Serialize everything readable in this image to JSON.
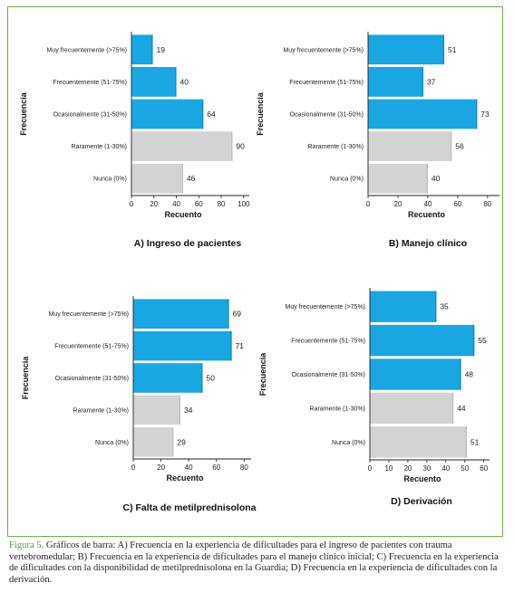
{
  "caption": {
    "label": "Figura 5.",
    "text": " Gráficos de barra: A) Frecuencia en la experiencia de dificultades para el ingreso de pacientes con trauma vertebromedular; B) Frecuencia en la experiencia de dificultades para el manejo clínico inicial; C) Frecuencia en la experiencia de dificultades con la disponibilidad de metilprednisolona en la Guardia; D) Frecuencia en la experiencia de dificultades con la derivación."
  },
  "colors": {
    "blue": "#19a6e2",
    "gray": "#d3d3d3",
    "frame": "#6cb24a"
  },
  "chart_data": [
    {
      "type": "bar",
      "orientation": "horizontal",
      "title": "A) Ingreso de pacientes",
      "xlabel": "Recuento",
      "ylabel": "Frecuencia",
      "categories": [
        "Muy frecuentemente (>75%)",
        "Frecuentemente (51-75%)",
        "Ocasionalmente (31-50%)",
        "Raramente (1-30%)",
        "Nunca (0%)"
      ],
      "values": [
        19,
        40,
        64,
        90,
        46
      ],
      "bar_colors": [
        "blue",
        "blue",
        "blue",
        "gray",
        "gray"
      ],
      "xlim": [
        0,
        105
      ],
      "xticks": [
        0,
        20,
        40,
        60,
        80,
        100
      ]
    },
    {
      "type": "bar",
      "orientation": "horizontal",
      "title": "B) Manejo clínico",
      "xlabel": "Recuento",
      "ylabel": "Frecuencia",
      "categories": [
        "Muy frecuentemente (>75%)",
        "Frecuentemente (51-75%)",
        "Ocasionalmente (31-50%)",
        "Raramente (1-30%)",
        "Nunca (0%)"
      ],
      "values": [
        51,
        37,
        73,
        56,
        40
      ],
      "bar_colors": [
        "blue",
        "blue",
        "blue",
        "gray",
        "gray"
      ],
      "xlim": [
        0,
        88
      ],
      "xticks": [
        0,
        20,
        40,
        60,
        80
      ]
    },
    {
      "type": "bar",
      "orientation": "horizontal",
      "title": "C) Falta de metilprednisolona",
      "xlabel": "Recuento",
      "ylabel": "Frecuencia",
      "categories": [
        "Muy frecuentemente (>75%)",
        "Frecuentemente (51-75%)",
        "Ocasionalmente (31-50%)",
        "Raramente (1-30%)",
        "Nunca (0%)"
      ],
      "values": [
        69,
        71,
        50,
        34,
        29
      ],
      "bar_colors": [
        "blue",
        "blue",
        "blue",
        "gray",
        "gray"
      ],
      "xlim": [
        0,
        85
      ],
      "xticks": [
        0,
        20,
        40,
        60,
        80
      ]
    },
    {
      "type": "bar",
      "orientation": "horizontal",
      "title": "D) Derivación",
      "xlabel": "Recuento",
      "ylabel": "Frecuencia",
      "categories": [
        "Muy frecuentemente (>75%)",
        "Frecuentemente (51-75%)",
        "Ocasionalmente (31-50%)",
        "Raramente (1-30%)",
        "Nunca (0%)"
      ],
      "values": [
        35,
        55,
        48,
        44,
        51
      ],
      "bar_colors": [
        "blue",
        "blue",
        "blue",
        "gray",
        "gray"
      ],
      "xlim": [
        0,
        63
      ],
      "xticks": [
        0,
        10,
        20,
        30,
        40,
        50,
        60
      ]
    }
  ]
}
